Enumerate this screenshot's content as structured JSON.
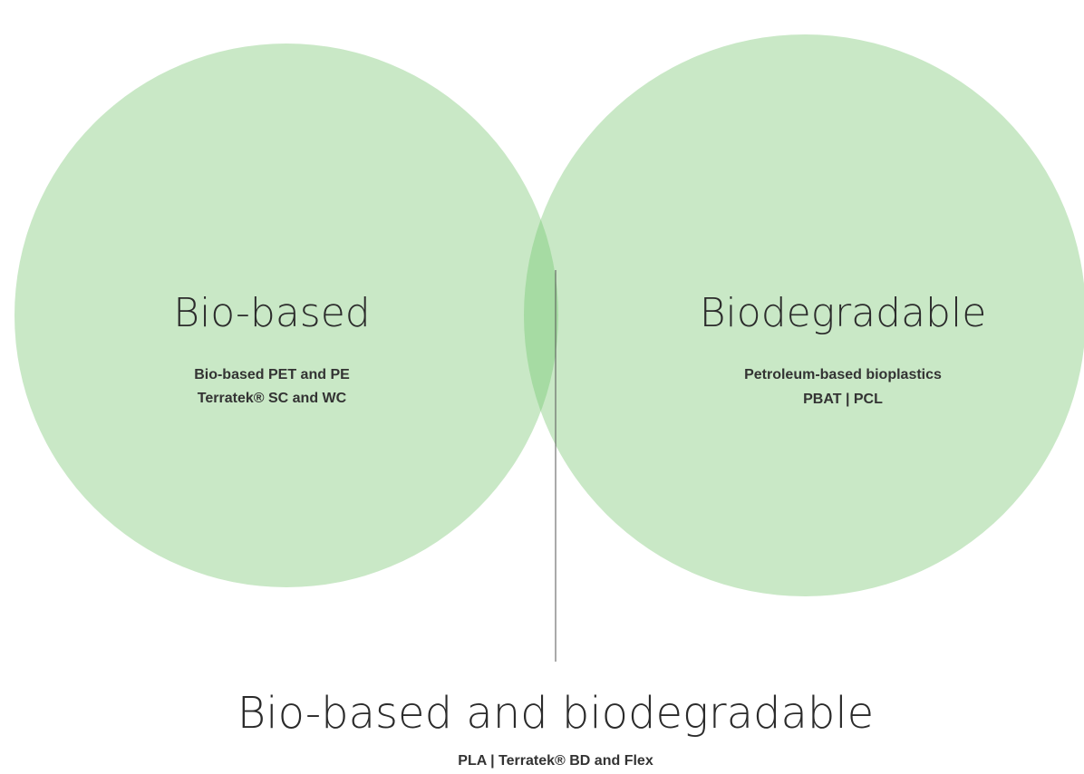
{
  "nodes": [
    {
      "label": "Bio-based",
      "items": [
        "Bio-based PET and PE",
        "Terratek® SC and WC"
      ]
    },
    {
      "label": "Biodegradable",
      "items": [
        "Petroleum-based bioplastics",
        "PBAT | PCL"
      ]
    }
  ],
  "intersection": {
    "label": "Bio-based and biodegradable",
    "items": [
      "PLA | Terratek® BD and Flex"
    ]
  }
}
